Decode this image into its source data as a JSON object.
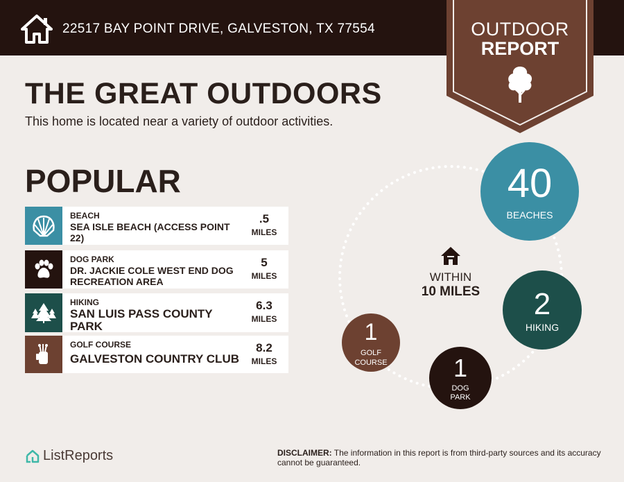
{
  "header": {
    "address": "22517 BAY POINT DRIVE, GALVESTON, TX 77554",
    "ribbon_line1": "OUTDOOR",
    "ribbon_line2": "REPORT"
  },
  "title": "THE GREAT OUTDOORS",
  "subtitle": "This home is located near a variety of outdoor activities.",
  "popular": {
    "heading": "POPULAR",
    "items": [
      {
        "category": "BEACH",
        "name": "SEA ISLE BEACH (ACCESS POINT 22)",
        "distance": ".5",
        "unit": "MILES",
        "icon": "shell-icon",
        "color": "#3b8fa4"
      },
      {
        "category": "DOG PARK",
        "name": "DR. JACKIE COLE WEST END DOG RECREATION AREA",
        "distance": "5",
        "unit": "MILES",
        "icon": "paw-icon",
        "color": "#24130f"
      },
      {
        "category": "HIKING",
        "name": "SAN LUIS PASS COUNTY PARK",
        "distance": "6.3",
        "unit": "MILES",
        "icon": "pine-trees-icon",
        "color": "#1d4f4a"
      },
      {
        "category": "GOLF COURSE",
        "name": "GALVESTON COUNTRY CLUB",
        "distance": "8.2",
        "unit": "MILES",
        "icon": "golf-bag-icon",
        "color": "#6d4131"
      }
    ]
  },
  "summary": {
    "within_line1": "WITHIN",
    "within_line2": "10 MILES",
    "counts": [
      {
        "value": "40",
        "label": "BEACHES",
        "color": "#3b8fa4"
      },
      {
        "value": "2",
        "label": "HIKING",
        "color": "#1d4f4a"
      },
      {
        "value": "1",
        "label": "DOG PARK",
        "color": "#24130f"
      },
      {
        "value": "1",
        "label": "GOLF COURSE",
        "color": "#6d4131"
      }
    ]
  },
  "footer": {
    "brand": "ListReports",
    "disclaimer_label": "DISCLAIMER:",
    "disclaimer_text": " The information in this report is from third-party sources and its accuracy cannot be guaranteed."
  }
}
